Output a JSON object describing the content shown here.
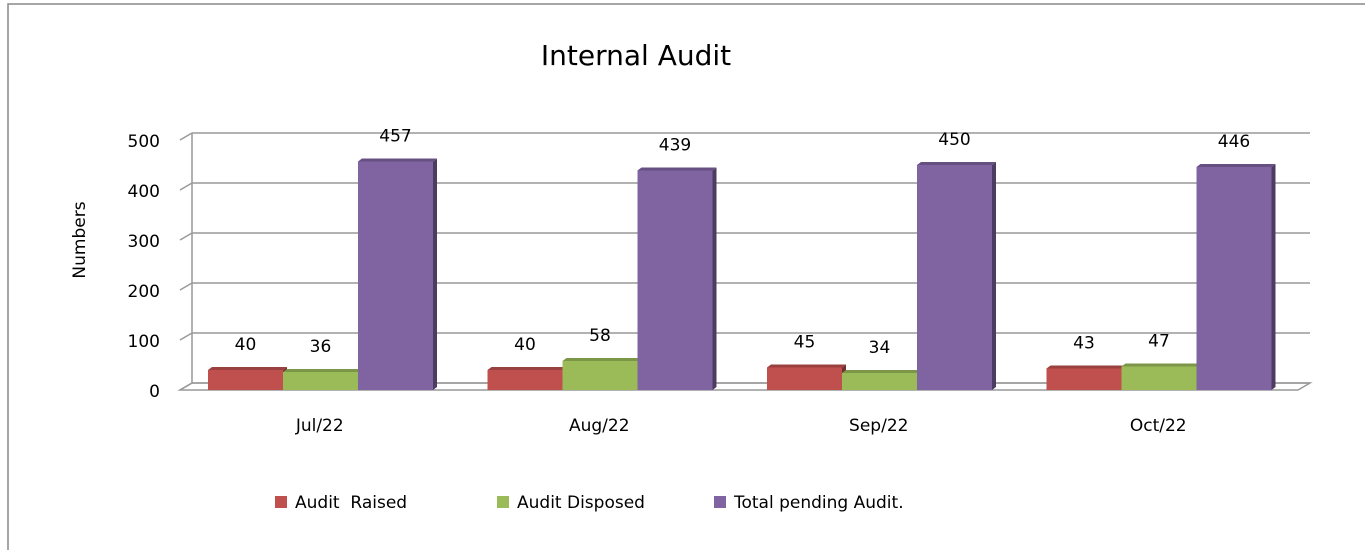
{
  "chart_data": {
    "type": "bar3d",
    "title": "Internal Audit",
    "y_label": "Numbers",
    "categories": [
      "Jul/22",
      "Aug/22",
      "Sep/22",
      "Oct/22"
    ],
    "series": [
      {
        "name": "Audit  Raised",
        "color": "#c0504d",
        "values": [
          40,
          40,
          45,
          43
        ]
      },
      {
        "name": "Audit Disposed",
        "color": "#9bbb59",
        "values": [
          36,
          58,
          34,
          47
        ]
      },
      {
        "name": "Total pending Audit.",
        "color": "#8064a2",
        "values": [
          457,
          439,
          450,
          446
        ]
      }
    ],
    "ylim": [
      0,
      500
    ],
    "yticks": [
      0,
      100,
      200,
      300,
      400,
      500
    ],
    "grid": true,
    "legend": "bottom"
  }
}
